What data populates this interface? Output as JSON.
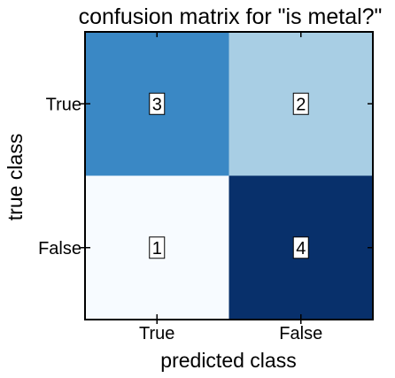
{
  "chart_data": {
    "type": "heatmap",
    "title": "confusion matrix for \"is metal?\"",
    "xlabel": "predicted class",
    "ylabel": "true class",
    "x_categories": [
      "True",
      "False"
    ],
    "y_categories": [
      "True",
      "False"
    ],
    "values": [
      [
        3,
        2
      ],
      [
        1,
        4
      ]
    ],
    "vmin": 1,
    "vmax": 4,
    "colormap": [
      "#f7fbff",
      "#08306b"
    ],
    "cell_colors": [
      [
        "#3a88c5",
        "#a8cee4"
      ],
      [
        "#f7fbff",
        "#08306b"
      ]
    ],
    "legend": false,
    "grid": false
  }
}
